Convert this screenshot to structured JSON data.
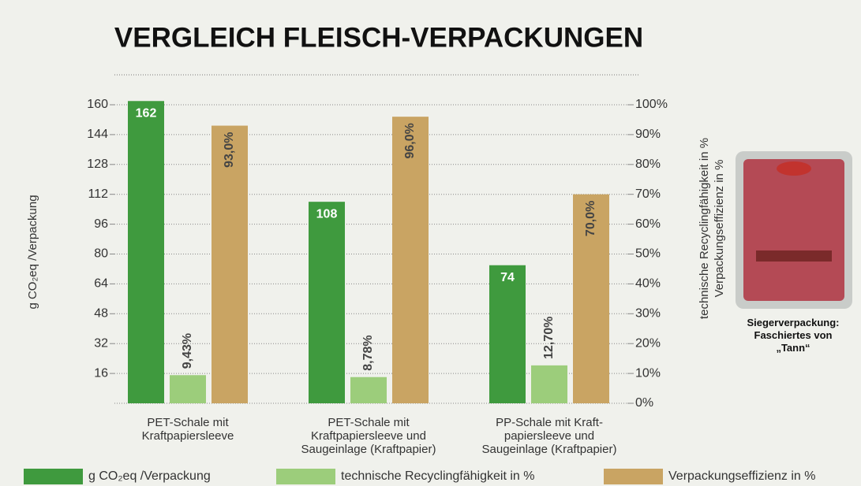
{
  "chart_data": {
    "type": "bar",
    "title": "VERGLEICH FLEISCH-VERPACKUNGEN",
    "ylabel": "g CO₂eq /Verpackung",
    "y2label": [
      "technische Recyclingfähigkeit in %",
      "Verpackungseffizienz in %"
    ],
    "categories": [
      "PET-Schale mit\nKraftpapiersleeve",
      "PET-Schale mit\nKraftpapiersleeve und\nSaugeinlage (Kraftpapier)",
      "PP-Schale mit Kraft-\npapiersleeve und\nSaugeinlage (Kraftpapier)"
    ],
    "series": [
      {
        "name": "g CO₂eq /Verpackung",
        "color": "#3f9a3e",
        "values": [
          162,
          108,
          74
        ]
      },
      {
        "name": "technische Recyclingfähigkeit in %",
        "color": "#9ccd7b",
        "axis": "y2",
        "values": [
          9.43,
          8.78,
          12.7
        ],
        "value_labels": [
          "9,43%",
          "8,78%",
          "12,70%"
        ]
      },
      {
        "name": "Verpackungseffizienz in %",
        "color": "#c9a463",
        "axis": "y2",
        "values": [
          93.0,
          96.0,
          70.0
        ],
        "value_labels": [
          "93,0%",
          "96,0%",
          "70,0%"
        ]
      }
    ],
    "ylim": [
      0,
      160
    ],
    "yticks": [
      16,
      32,
      48,
      64,
      80,
      96,
      112,
      128,
      144,
      160
    ],
    "y2lim": [
      0,
      100
    ],
    "y2ticks": [
      {
        "value": 0,
        "label": "0%"
      },
      {
        "value": 10,
        "label": "10%"
      },
      {
        "value": 20,
        "label": "20%"
      },
      {
        "value": 30,
        "label": "30%"
      },
      {
        "value": 40,
        "label": "40%"
      },
      {
        "value": 50,
        "label": "50%"
      },
      {
        "value": 60,
        "label": "60%"
      },
      {
        "value": 70,
        "label": "70%"
      },
      {
        "value": 80,
        "label": "80%"
      },
      {
        "value": 90,
        "label": "90%"
      },
      {
        "value": 100,
        "label": "100%"
      }
    ],
    "grid": true
  },
  "image_caption": "Siegerverpackung:\nFaschiertes von\n„Tann“"
}
